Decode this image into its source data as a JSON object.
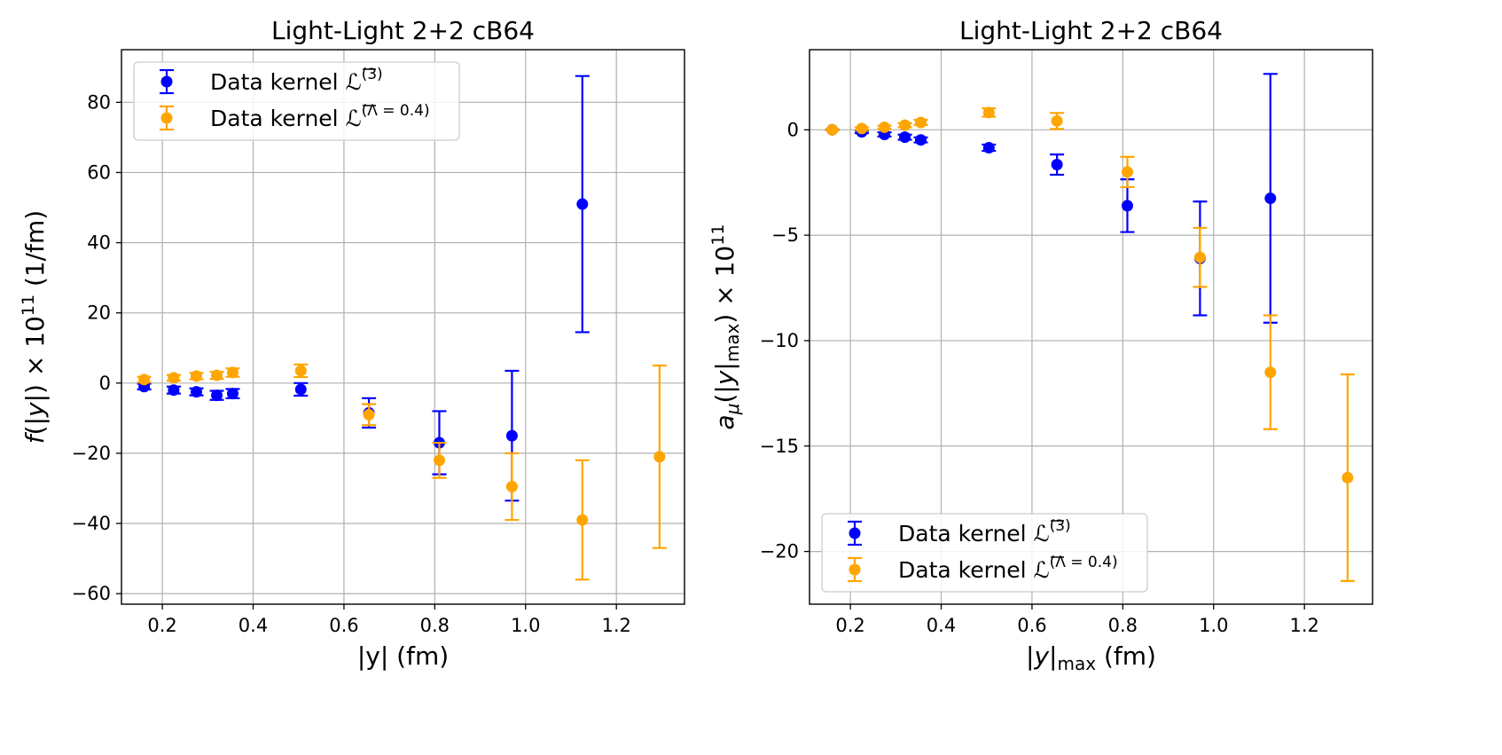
{
  "chart_data": [
    {
      "type": "scatter",
      "title": "Light-Light 2+2 cB64",
      "xlabel": "|y| (fm)",
      "ylabel": "f(|y|) × 10^11 (1/fm)",
      "xlim": [
        0.11,
        1.35
      ],
      "ylim": [
        -63,
        95
      ],
      "xticks": [
        0.2,
        0.4,
        0.6,
        0.8,
        1.0,
        1.2
      ],
      "xtick_labels": [
        "0.2",
        "0.4",
        "0.6",
        "0.8",
        "1.0",
        "1.2"
      ],
      "yticks": [
        -60,
        -40,
        -20,
        0,
        20,
        40,
        60,
        80
      ],
      "ytick_labels": [
        "−60",
        "−40",
        "−20",
        "0",
        "20",
        "40",
        "60",
        "80"
      ],
      "grid": true,
      "legend_position": "upper-left",
      "series": [
        {
          "name": "Data kernel",
          "label_text": "Data kernel",
          "label_math": "L(3)",
          "color": "#0000ff",
          "x": [
            0.16,
            0.225,
            0.275,
            0.32,
            0.355,
            0.505,
            0.655,
            0.81,
            0.97,
            1.125
          ],
          "y": [
            -1.0,
            -2.0,
            -2.5,
            -3.5,
            -3.0,
            -1.8,
            -8.5,
            -17.0,
            -15.0,
            51.0
          ],
          "err": [
            0.8,
            1.0,
            1.0,
            1.3,
            1.3,
            1.8,
            4.2,
            9.0,
            18.5,
            36.5
          ]
        },
        {
          "name": "Data kernel",
          "label_text": "Data kernel",
          "label_math": "L(Λ=0.4)",
          "color": "#ffa500",
          "x": [
            0.16,
            0.225,
            0.275,
            0.32,
            0.355,
            0.505,
            0.655,
            0.81,
            0.97,
            1.125,
            1.295
          ],
          "y": [
            1.0,
            1.5,
            2.0,
            2.2,
            3.0,
            3.5,
            -9.0,
            -22.0,
            -29.5,
            -39.0,
            -21.0
          ],
          "err": [
            0.8,
            0.8,
            0.9,
            1.0,
            1.2,
            1.8,
            3.0,
            5.0,
            9.5,
            17.0,
            26.0
          ]
        }
      ]
    },
    {
      "type": "scatter",
      "title": "Light-Light 2+2 cB64",
      "xlabel": "|y|max (fm)",
      "ylabel": "aμ(|y|max) × 10^11",
      "xlim": [
        0.11,
        1.35
      ],
      "ylim": [
        -22.5,
        3.8
      ],
      "xticks": [
        0.2,
        0.4,
        0.6,
        0.8,
        1.0,
        1.2
      ],
      "xtick_labels": [
        "0.2",
        "0.4",
        "0.6",
        "0.8",
        "1.0",
        "1.2"
      ],
      "yticks": [
        -20,
        -15,
        -10,
        -5,
        0
      ],
      "ytick_labels": [
        "−20",
        "−15",
        "−10",
        "−5",
        "0"
      ],
      "grid": true,
      "legend_position": "lower-left",
      "series": [
        {
          "name": "Data kernel",
          "label_text": "Data kernel",
          "label_math": "L(3)",
          "color": "#0000ff",
          "x": [
            0.16,
            0.225,
            0.275,
            0.32,
            0.355,
            0.505,
            0.655,
            0.81,
            0.97,
            1.125
          ],
          "y": [
            0.0,
            -0.1,
            -0.22,
            -0.35,
            -0.48,
            -0.85,
            -1.65,
            -3.6,
            -6.1,
            -3.25
          ],
          "err": [
            0.02,
            0.06,
            0.1,
            0.12,
            0.12,
            0.15,
            0.48,
            1.25,
            2.7,
            5.9
          ]
        },
        {
          "name": "Data kernel",
          "label_text": "Data kernel",
          "label_math": "L(Λ=0.4)",
          "color": "#ffa500",
          "x": [
            0.16,
            0.225,
            0.275,
            0.32,
            0.355,
            0.505,
            0.655,
            0.81,
            0.97,
            1.125,
            1.295
          ],
          "y": [
            0.0,
            0.06,
            0.12,
            0.22,
            0.35,
            0.82,
            0.42,
            -2.0,
            -6.05,
            -11.5,
            -16.5
          ],
          "err": [
            0.02,
            0.06,
            0.08,
            0.1,
            0.12,
            0.2,
            0.38,
            0.72,
            1.4,
            2.7,
            4.9
          ]
        }
      ]
    }
  ]
}
